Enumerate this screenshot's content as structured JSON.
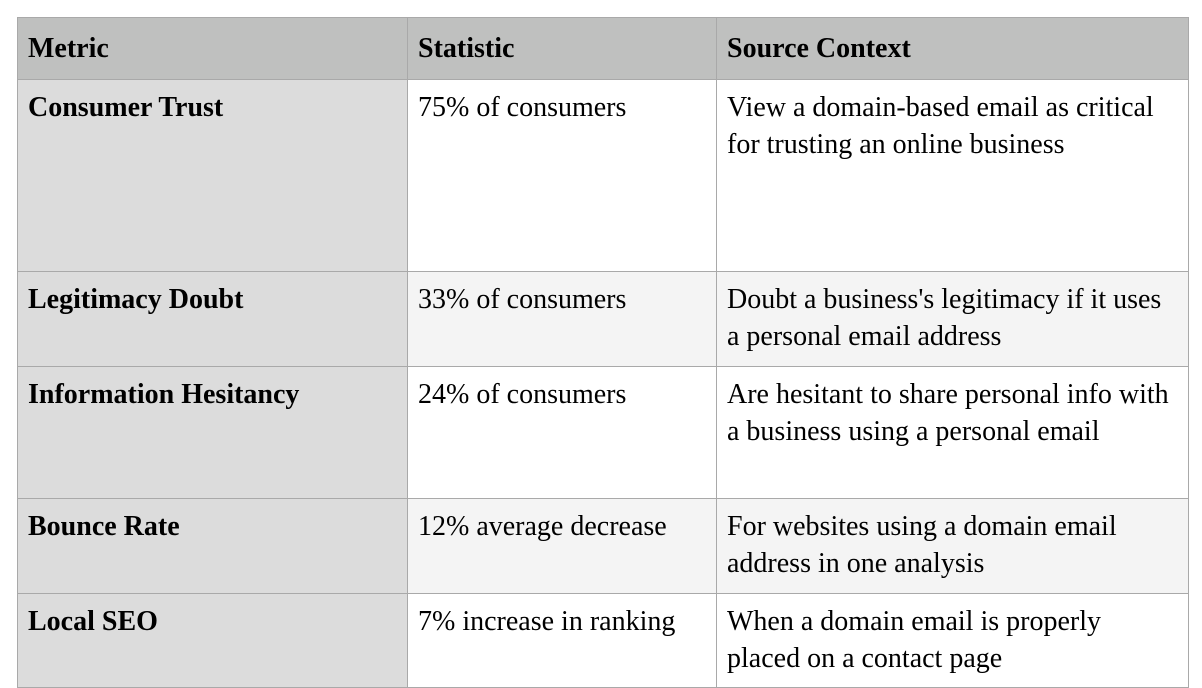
{
  "table": {
    "headers": [
      "Metric",
      "Statistic",
      "Source Context"
    ],
    "rows": [
      {
        "metric": "Consumer Trust",
        "statistic": "75% of consumers",
        "context": "View a domain-based email as critical for trusting an online business"
      },
      {
        "metric": "Legitimacy Doubt",
        "statistic": "33% of consumers",
        "context": "Doubt a business's legitimacy if it uses a personal email address"
      },
      {
        "metric": "Information Hesitancy",
        "statistic": "24% of consumers",
        "context": "Are hesitant to share personal info with a business using a personal email"
      },
      {
        "metric": "Bounce Rate",
        "statistic": "12% average decrease",
        "context": "For websites using a domain email address in one analysis"
      },
      {
        "metric": "Local SEO",
        "statistic": "7% increase in ranking",
        "context": "When a domain email is properly placed on a contact page"
      }
    ]
  }
}
